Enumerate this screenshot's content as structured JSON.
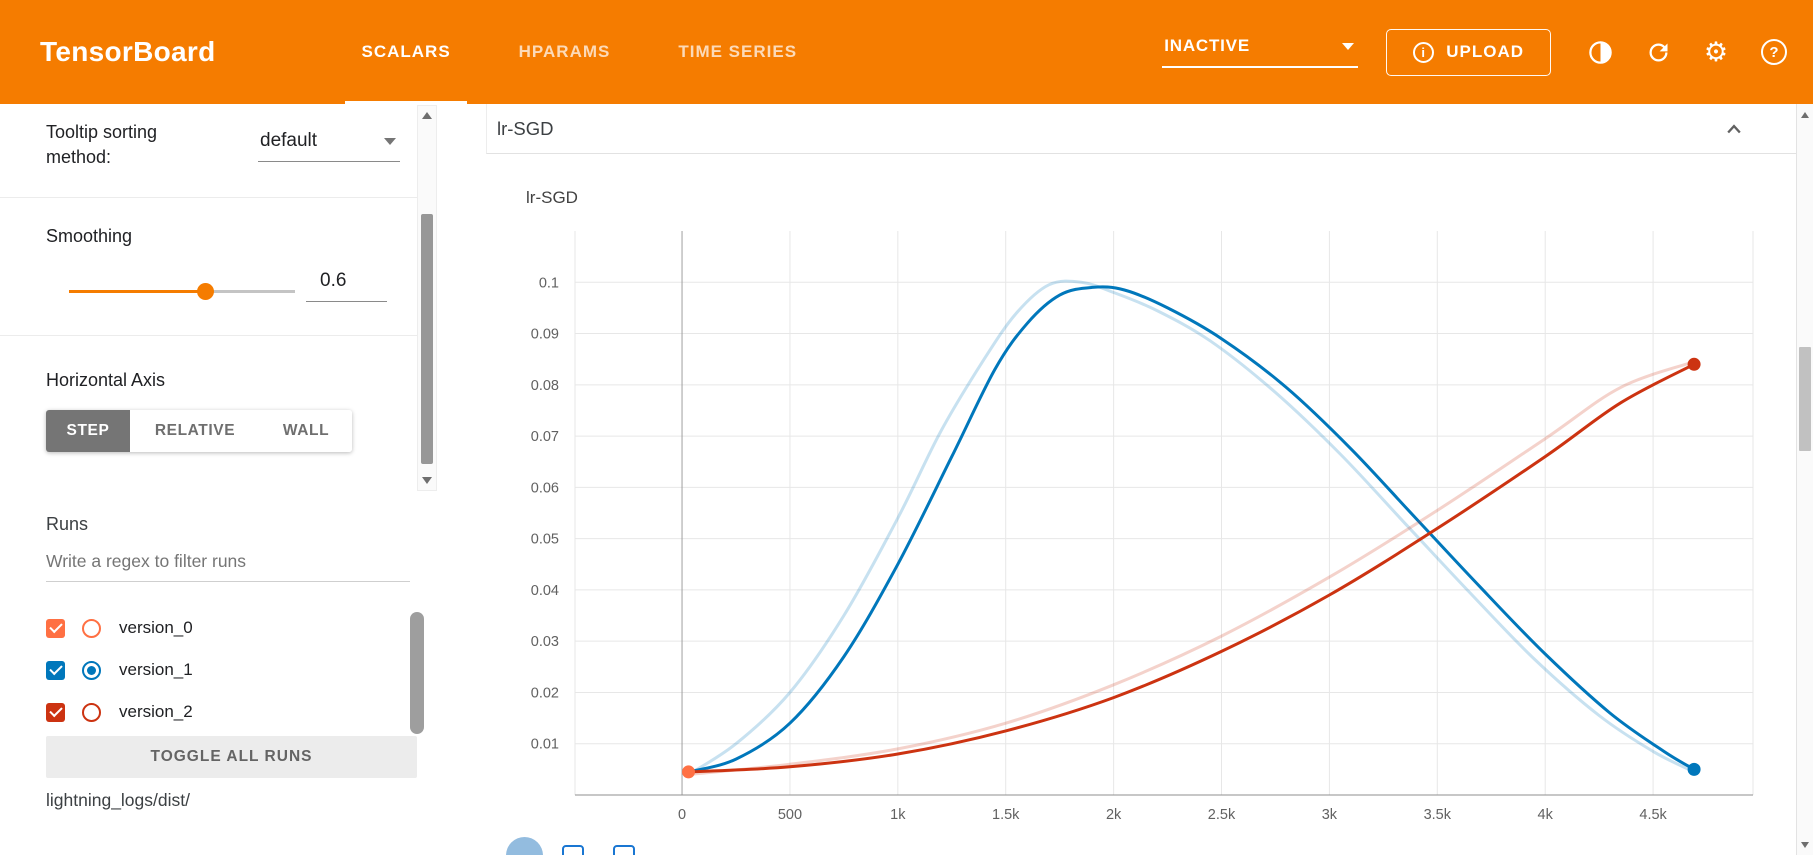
{
  "colors": {
    "header": "#f57c00",
    "accent": "#f57c00"
  },
  "header": {
    "app_title": "TensorBoard",
    "tabs": [
      {
        "label": "SCALARS",
        "active": true
      },
      {
        "label": "HPARAMS",
        "active": false
      },
      {
        "label": "TIME SERIES",
        "active": false
      }
    ],
    "status_dropdown": {
      "value": "INACTIVE"
    },
    "upload_button": {
      "label": "UPLOAD"
    },
    "icon_glyphs": {
      "gear": "⚙",
      "help": "?",
      "info": "i"
    }
  },
  "sidebar": {
    "tooltip_sorting": {
      "label": "Tooltip sorting method:",
      "value": "default"
    },
    "smoothing": {
      "label": "Smoothing",
      "value": "0.6",
      "percent": 60
    },
    "horizontal_axis": {
      "label": "Horizontal Axis",
      "options": [
        {
          "label": "STEP",
          "active": true
        },
        {
          "label": "RELATIVE",
          "active": false
        },
        {
          "label": "WALL",
          "active": false
        }
      ]
    },
    "runs": {
      "label": "Runs",
      "filter_placeholder": "Write a regex to filter runs",
      "items": [
        {
          "name": "version_0",
          "color": "#ff7043",
          "checked": true,
          "radio_selected": false
        },
        {
          "name": "version_1",
          "color": "#0077bb",
          "checked": true,
          "radio_selected": true
        },
        {
          "name": "version_2",
          "color": "#cc3311",
          "checked": true,
          "radio_selected": false
        }
      ],
      "toggle_all_label": "TOGGLE ALL RUNS",
      "log_dir": "lightning_logs/dist/"
    }
  },
  "main": {
    "card_title": "lr-SGD"
  },
  "chart_data": {
    "type": "line",
    "title": "lr-SGD",
    "xlabel": "",
    "ylabel": "",
    "grid": true,
    "legend": "none",
    "smoothing_applied": 0.6,
    "x_range": [
      -496,
      4963
    ],
    "y_range": [
      0,
      0.11
    ],
    "x_ticks": [
      0,
      500,
      1000,
      1500,
      2000,
      2500,
      3000,
      3500,
      4000,
      4500
    ],
    "x_tick_labels": [
      "0",
      "500",
      "1k",
      "1.5k",
      "2k",
      "2.5k",
      "3k",
      "3.5k",
      "4k",
      "4.5k"
    ],
    "y_ticks": [
      0.01,
      0.02,
      0.03,
      0.04,
      0.05,
      0.06,
      0.07,
      0.08,
      0.09,
      0.1
    ],
    "y_tick_labels": [
      "0.01",
      "0.02",
      "0.03",
      "0.04",
      "0.05",
      "0.06",
      "0.07",
      "0.08",
      "0.09",
      "0.1"
    ],
    "series": [
      {
        "name": "version_1",
        "color": "#0077bb",
        "smoothed": [
          [
            30,
            0.0045
          ],
          [
            250,
            0.007
          ],
          [
            500,
            0.014
          ],
          [
            750,
            0.027
          ],
          [
            1000,
            0.045
          ],
          [
            1250,
            0.066
          ],
          [
            1450,
            0.083
          ],
          [
            1600,
            0.092
          ],
          [
            1750,
            0.0975
          ],
          [
            1900,
            0.099
          ],
          [
            2050,
            0.0985
          ],
          [
            2250,
            0.095
          ],
          [
            2500,
            0.089
          ],
          [
            2800,
            0.0795
          ],
          [
            3100,
            0.0675
          ],
          [
            3400,
            0.054
          ],
          [
            3700,
            0.0405
          ],
          [
            4000,
            0.0275
          ],
          [
            4300,
            0.016
          ],
          [
            4550,
            0.0085
          ],
          [
            4690,
            0.005
          ]
        ],
        "original": [
          [
            30,
            0.004
          ],
          [
            250,
            0.01
          ],
          [
            500,
            0.02
          ],
          [
            750,
            0.035
          ],
          [
            1000,
            0.054
          ],
          [
            1200,
            0.071
          ],
          [
            1400,
            0.085
          ],
          [
            1550,
            0.094
          ],
          [
            1700,
            0.0995
          ],
          [
            1850,
            0.1
          ],
          [
            2000,
            0.098
          ],
          [
            2200,
            0.0945
          ],
          [
            2450,
            0.0885
          ],
          [
            2750,
            0.0785
          ],
          [
            3050,
            0.0665
          ],
          [
            3350,
            0.053
          ],
          [
            3650,
            0.0395
          ],
          [
            3950,
            0.0265
          ],
          [
            4250,
            0.0155
          ],
          [
            4500,
            0.0085
          ],
          [
            4690,
            0.0045
          ]
        ]
      },
      {
        "name": "version_2",
        "color": "#cc3311",
        "smoothed": [
          [
            30,
            0.0045
          ],
          [
            500,
            0.0055
          ],
          [
            1000,
            0.008
          ],
          [
            1500,
            0.0125
          ],
          [
            2000,
            0.019
          ],
          [
            2500,
            0.028
          ],
          [
            3000,
            0.039
          ],
          [
            3500,
            0.052
          ],
          [
            4000,
            0.066
          ],
          [
            4350,
            0.0765
          ],
          [
            4690,
            0.084
          ]
        ],
        "original": [
          [
            30,
            0.004
          ],
          [
            500,
            0.006
          ],
          [
            1000,
            0.009
          ],
          [
            1500,
            0.014
          ],
          [
            2000,
            0.0215
          ],
          [
            2500,
            0.031
          ],
          [
            3000,
            0.0425
          ],
          [
            3500,
            0.0555
          ],
          [
            4000,
            0.0695
          ],
          [
            4350,
            0.0795
          ],
          [
            4690,
            0.0845
          ]
        ]
      },
      {
        "name": "version_0",
        "color": "#ff7043",
        "points": [
          [
            30,
            0.0045
          ]
        ]
      }
    ],
    "markers": [
      {
        "x": 30,
        "y": 0.0045,
        "color": "#ff7043"
      },
      {
        "x": 4690,
        "y": 0.005,
        "color": "#0077bb"
      },
      {
        "x": 4690,
        "y": 0.084,
        "color": "#cc3311"
      }
    ]
  }
}
